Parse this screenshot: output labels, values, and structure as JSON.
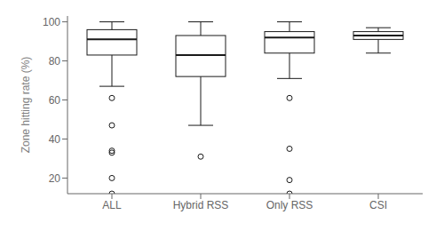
{
  "chart_data": {
    "type": "box",
    "categories": [
      "ALL",
      "Hybrid RSS",
      "Only RSS",
      "CSI"
    ],
    "ylabel": "Zone hitting rate (%)",
    "ylim": [
      12,
      103
    ],
    "yticks": [
      20,
      40,
      60,
      80,
      100
    ],
    "color": "#1a1a1a",
    "boxes": [
      {
        "q1": 83,
        "median": 91,
        "q3": 96,
        "whislo": 67,
        "whishi": 100,
        "fliers": [
          61,
          47,
          34,
          33,
          20,
          12
        ]
      },
      {
        "q1": 72,
        "median": 83,
        "q3": 93,
        "whislo": 47,
        "whishi": 100,
        "fliers": [
          31
        ]
      },
      {
        "q1": 84,
        "median": 92,
        "q3": 95,
        "whislo": 71,
        "whishi": 100,
        "fliers": [
          61,
          35,
          19,
          12
        ]
      },
      {
        "q1": 91,
        "median": 93,
        "q3": 95,
        "whislo": 84,
        "whishi": 97,
        "fliers": []
      }
    ]
  }
}
